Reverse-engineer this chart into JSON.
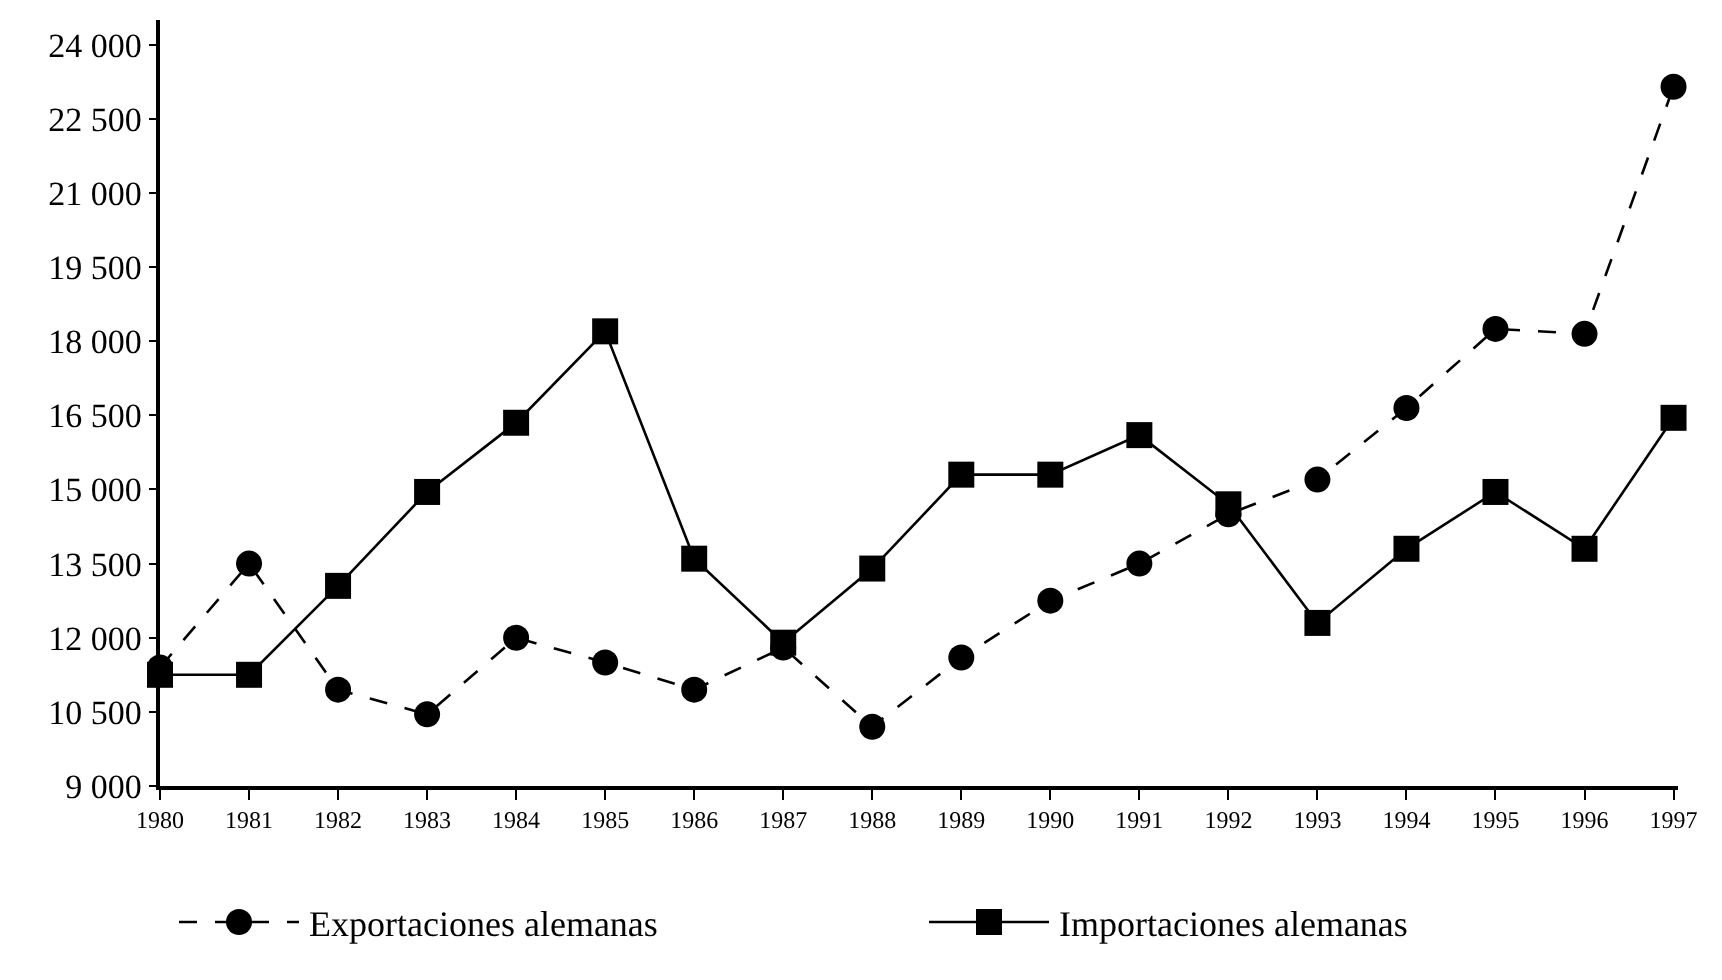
{
  "chart_data": {
    "type": "line",
    "categories": [
      "1980",
      "1981",
      "1982",
      "1983",
      "1984",
      "1985",
      "1986",
      "1987",
      "1988",
      "1989",
      "1990",
      "1991",
      "1992",
      "1993",
      "1994",
      "1995",
      "1996",
      "1997"
    ],
    "series": [
      {
        "name": "Exportaciones alemanas",
        "color": "#000000",
        "marker": "circle",
        "line_style": "dashed",
        "values": [
          11400,
          13500,
          10950,
          10450,
          12000,
          11500,
          10950,
          11800,
          10200,
          11600,
          12750,
          13500,
          14500,
          15200,
          16650,
          18250,
          18150,
          23150
        ]
      },
      {
        "name": "Importaciones alemanas",
        "color": "#000000",
        "marker": "square",
        "line_style": "solid",
        "values": [
          11250,
          11250,
          13050,
          14950,
          16350,
          18200,
          13600,
          11900,
          13400,
          15300,
          15300,
          16100,
          14700,
          12300,
          13800,
          14950,
          13800,
          16450
        ]
      }
    ],
    "ylim": [
      9000,
      24500
    ],
    "yticks": [
      {
        "value": 9000,
        "label": "9 000"
      },
      {
        "value": 10500,
        "label": "10 500"
      },
      {
        "value": 12000,
        "label": "12 000"
      },
      {
        "value": 13500,
        "label": "13 500"
      },
      {
        "value": 15000,
        "label": "15 000"
      },
      {
        "value": 16500,
        "label": "16 500"
      },
      {
        "value": 18000,
        "label": "18 000"
      },
      {
        "value": 19500,
        "label": "19 500"
      },
      {
        "value": 21000,
        "label": "21 000"
      },
      {
        "value": 22500,
        "label": "22 500"
      },
      {
        "value": 24000,
        "label": "24 000"
      }
    ],
    "legend": "bottom"
  }
}
